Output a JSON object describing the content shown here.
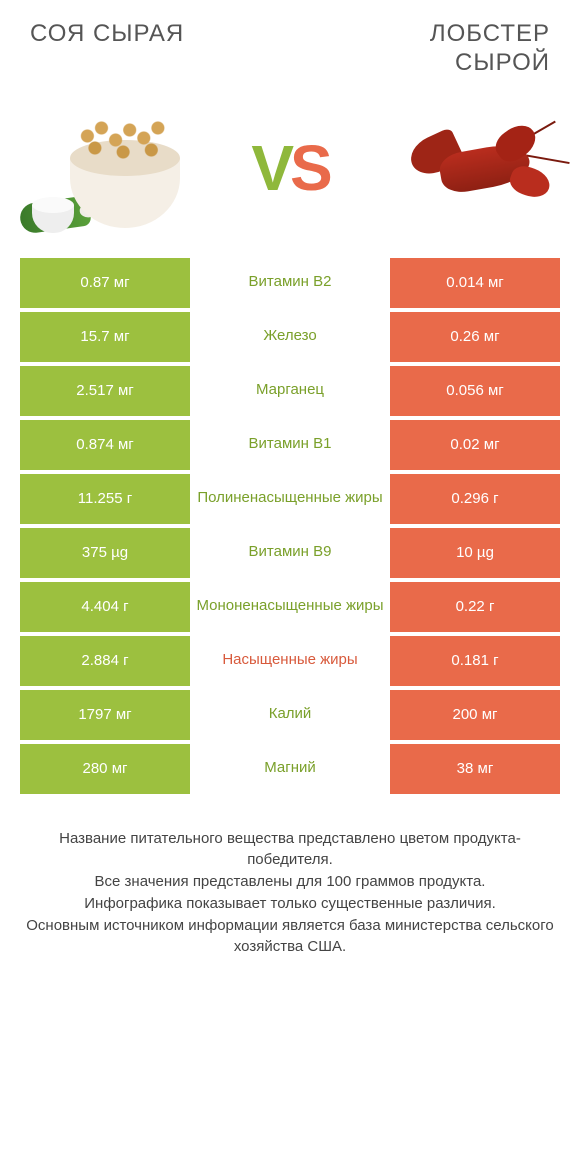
{
  "colors": {
    "left": "#9cc03f",
    "right": "#e96a4a",
    "left_text": "#7aa02a",
    "right_text": "#d85a3c",
    "heading": "#555555",
    "footer": "#444444",
    "bg": "#ffffff"
  },
  "header": {
    "left_title": "СОЯ СЫРАЯ",
    "right_title": "ЛОБСТЕР\nСЫРОЙ"
  },
  "vs": {
    "v": "V",
    "s": "S"
  },
  "rows": [
    {
      "left": "0.87 мг",
      "label": "Витамин B2",
      "right": "0.014 мг",
      "winner": "left"
    },
    {
      "left": "15.7 мг",
      "label": "Железо",
      "right": "0.26 мг",
      "winner": "left"
    },
    {
      "left": "2.517 мг",
      "label": "Марганец",
      "right": "0.056 мг",
      "winner": "left"
    },
    {
      "left": "0.874 мг",
      "label": "Витамин B1",
      "right": "0.02 мг",
      "winner": "left"
    },
    {
      "left": "11.255 г",
      "label": "Полиненасыщенные жиры",
      "right": "0.296 г",
      "winner": "left"
    },
    {
      "left": "375 µg",
      "label": "Витамин B9",
      "right": "10 µg",
      "winner": "left"
    },
    {
      "left": "4.404 г",
      "label": "Мононенасыщенные жиры",
      "right": "0.22 г",
      "winner": "left"
    },
    {
      "left": "2.884 г",
      "label": "Насыщенные жиры",
      "right": "0.181 г",
      "winner": "right"
    },
    {
      "left": "1797 мг",
      "label": "Калий",
      "right": "200 мг",
      "winner": "left"
    },
    {
      "left": "280 мг",
      "label": "Магний",
      "right": "38 мг",
      "winner": "left"
    }
  ],
  "footer": {
    "line1": "Название питательного вещества представлено цветом продукта-победителя.",
    "line2": "Все значения представлены для 100 граммов продукта.",
    "line3": "Инфографика показывает только существенные различия.",
    "line4": "Основным источником информации является база министерства сельского хозяйства США."
  }
}
